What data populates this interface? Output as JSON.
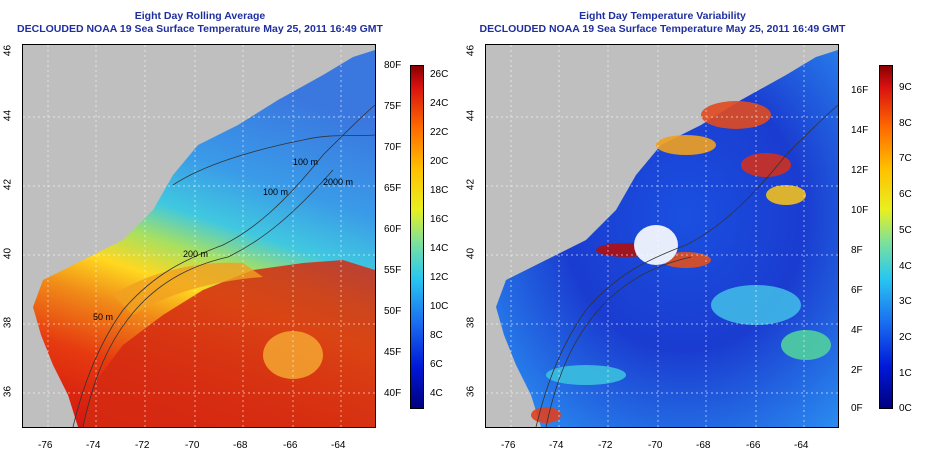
{
  "left_panel": {
    "title": "Eight Day Rolling Average",
    "subtitle": "DECLOUDED NOAA 19 Sea Surface Temperature May 25, 2011 16:49 GMT",
    "x_ticks": [
      "-76",
      "-74",
      "-72",
      "-70",
      "-68",
      "-66",
      "-64"
    ],
    "y_ticks": [
      "36",
      "38",
      "40",
      "42",
      "44",
      "46"
    ],
    "contour_labels": [
      "100 m",
      "100 m",
      "2000 m",
      "200 m",
      "50 m"
    ],
    "colorbar_f": [
      "80F",
      "75F",
      "70F",
      "65F",
      "60F",
      "55F",
      "50F",
      "45F",
      "40F"
    ],
    "colorbar_c": [
      "26C",
      "24C",
      "22C",
      "20C",
      "18C",
      "16C",
      "14C",
      "12C",
      "10C",
      "8C",
      "6C",
      "4C"
    ]
  },
  "right_panel": {
    "title": "Eight Day Temperature Variability",
    "subtitle": "DECLOUDED NOAA 19 Sea Surface Temperature May 25, 2011 16:49 GMT",
    "x_ticks": [
      "-76",
      "-74",
      "-72",
      "-70",
      "-68",
      "-66",
      "-64"
    ],
    "y_ticks": [
      "36",
      "38",
      "40",
      "42",
      "44",
      "46"
    ],
    "colorbar_f": [
      "16F",
      "14F",
      "12F",
      "10F",
      "8F",
      "6F",
      "4F",
      "2F",
      "0F"
    ],
    "colorbar_c": [
      "9C",
      "8C",
      "7C",
      "6C",
      "5C",
      "4C",
      "3C",
      "2C",
      "1C",
      "0C"
    ]
  },
  "colors": {
    "land": "#bfbfbf",
    "title_blue": "#1f2f9f"
  }
}
